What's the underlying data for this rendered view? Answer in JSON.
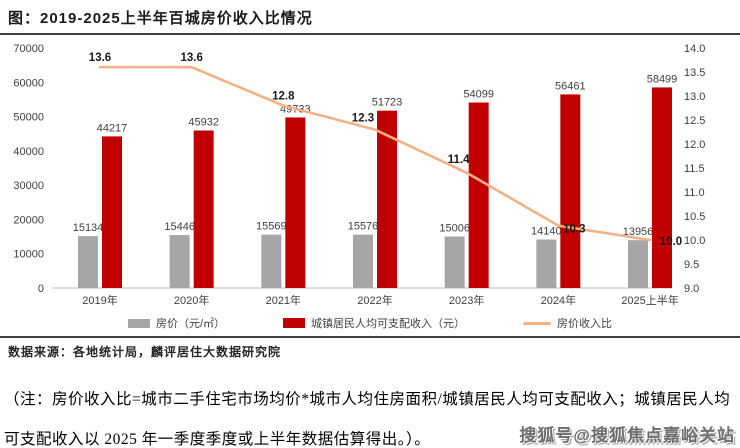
{
  "title": "图：2019-2025上半年百城房价收入比情况",
  "chart_data": {
    "type": "bar",
    "subtype": "grouped-bar-with-line-combo",
    "categories": [
      "2019年",
      "2020年",
      "2021年",
      "2022年",
      "2023年",
      "2024年",
      "2025上半年"
    ],
    "series": [
      {
        "name": "房价（元/㎡）",
        "type": "bar",
        "axis": "left",
        "color": "#A6A6A6",
        "values": [
          15134,
          15446,
          15569,
          15576,
          15006,
          14140,
          13956
        ]
      },
      {
        "name": "城镇居民人均可支配收入（元）",
        "type": "bar",
        "axis": "left",
        "color": "#C00000",
        "values": [
          44217,
          45932,
          49733,
          51723,
          54099,
          56461,
          58499
        ]
      },
      {
        "name": "房价收入比",
        "type": "line",
        "axis": "right",
        "color": "#F4B183",
        "values": [
          13.6,
          13.6,
          12.8,
          12.3,
          11.4,
          10.3,
          10.0
        ]
      }
    ],
    "title": "图：2019-2025上半年百城房价收入比情况",
    "xlabel": "",
    "ylabel_left": "",
    "ylabel_right": "",
    "left_axis": {
      "min": 0,
      "max": 70000,
      "step": 10000,
      "ticks": [
        "0",
        "10000",
        "20000",
        "30000",
        "40000",
        "50000",
        "60000",
        "70000"
      ]
    },
    "right_axis": {
      "min": 9.0,
      "max": 14.0,
      "step": 0.5,
      "ticks": [
        "9.0",
        "9.5",
        "10.0",
        "10.5",
        "11.0",
        "11.5",
        "12.0",
        "12.5",
        "13.0",
        "13.5",
        "14.0"
      ]
    },
    "grid": false,
    "legend_position": "bottom",
    "data_labels": true
  },
  "colors": {
    "bar_gray": "#A6A6A6",
    "bar_red": "#C00000",
    "line_orange": "#F4B183",
    "axis_text": "#404040",
    "divider": "#3f3f3f"
  },
  "source_line": "数据来源：各地统计局，麟评居住大数据研究院",
  "note": "（注：房价收入比=城市二手住宅市场均价*城市人均住房面积/城镇居民人均可支配收入；城镇居民人均可支配收入以 2025 年一季度季度或上半年数据估算得出。）。",
  "watermark": "搜狐号@搜狐焦点嘉峪关站"
}
